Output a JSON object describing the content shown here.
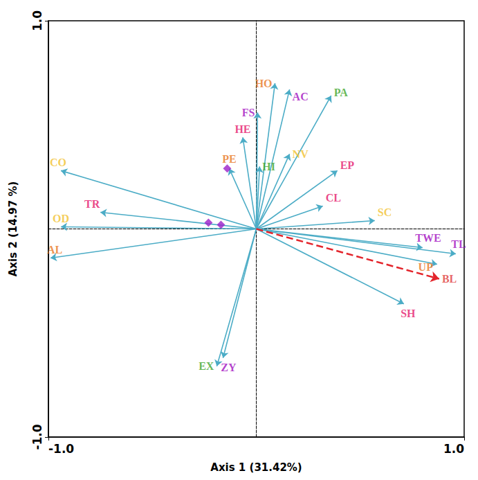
{
  "chart_data": {
    "type": "biplot",
    "xlabel": "Axis 1 (31.42%)",
    "ylabel": "Axis 2 (14.97 %)",
    "xlim": [
      -1,
      1
    ],
    "ylim": [
      -1,
      1
    ],
    "xticks": [
      {
        "value": -1,
        "label": "-1.0"
      },
      {
        "value": 1,
        "label": "1.0"
      }
    ],
    "yticks": [
      {
        "value": -1,
        "label": "-1.0"
      },
      {
        "value": 1,
        "label": "1.0"
      }
    ],
    "grid": false,
    "series": [
      {
        "type": "arrow",
        "color": "#4bacc6",
        "line_style": "solid",
        "labels": [
          "CO",
          "TR",
          "OD",
          "AL",
          "PE",
          "HE",
          "FS",
          "HI",
          "HO",
          "AC",
          "PA",
          "NV",
          "EP",
          "CL",
          "SC",
          "TWE",
          "TL",
          "UP",
          "SH",
          "EX",
          "ZY"
        ],
        "x": [
          -0.94,
          -0.75,
          -0.94,
          -0.99,
          -0.13,
          -0.065,
          0.006,
          0.016,
          0.09,
          0.16,
          0.36,
          0.16,
          0.39,
          0.32,
          0.57,
          0.8,
          0.96,
          0.87,
          0.71,
          -0.19,
          -0.16
        ],
        "y": [
          0.28,
          0.08,
          0.01,
          -0.14,
          0.29,
          0.44,
          0.56,
          0.3,
          0.7,
          0.67,
          0.64,
          0.36,
          0.28,
          0.11,
          0.04,
          -0.09,
          -0.12,
          -0.17,
          -0.36,
          -0.66,
          -0.62
        ],
        "colors": [
          "#f2c12e",
          "#e5176b",
          "#f2c12e",
          "#e87722",
          "#e87722",
          "#e5176b",
          "#a10fbf",
          "#3ea52c",
          "#e87722",
          "#a10fbf",
          "#3ea52c",
          "#f2c12e",
          "#e5176b",
          "#e5176b",
          "#f2c12e",
          "#a10fbf",
          "#a10fbf",
          "#e87722",
          "#e5176b",
          "#3ea52c",
          "#a10fbf"
        ]
      },
      {
        "type": "arrow",
        "color": "#e3242b",
        "line_style": "dashed",
        "labels": [
          "BL"
        ],
        "x": [
          0.88
        ],
        "y": [
          -0.24
        ],
        "colors": [
          "#e03c3c"
        ]
      },
      {
        "type": "scatter",
        "marker": "diamond",
        "color": "#9b1fc9",
        "x": [
          -0.14,
          -0.23,
          -0.17
        ],
        "y": [
          0.29,
          0.03,
          0.02
        ]
      }
    ]
  }
}
